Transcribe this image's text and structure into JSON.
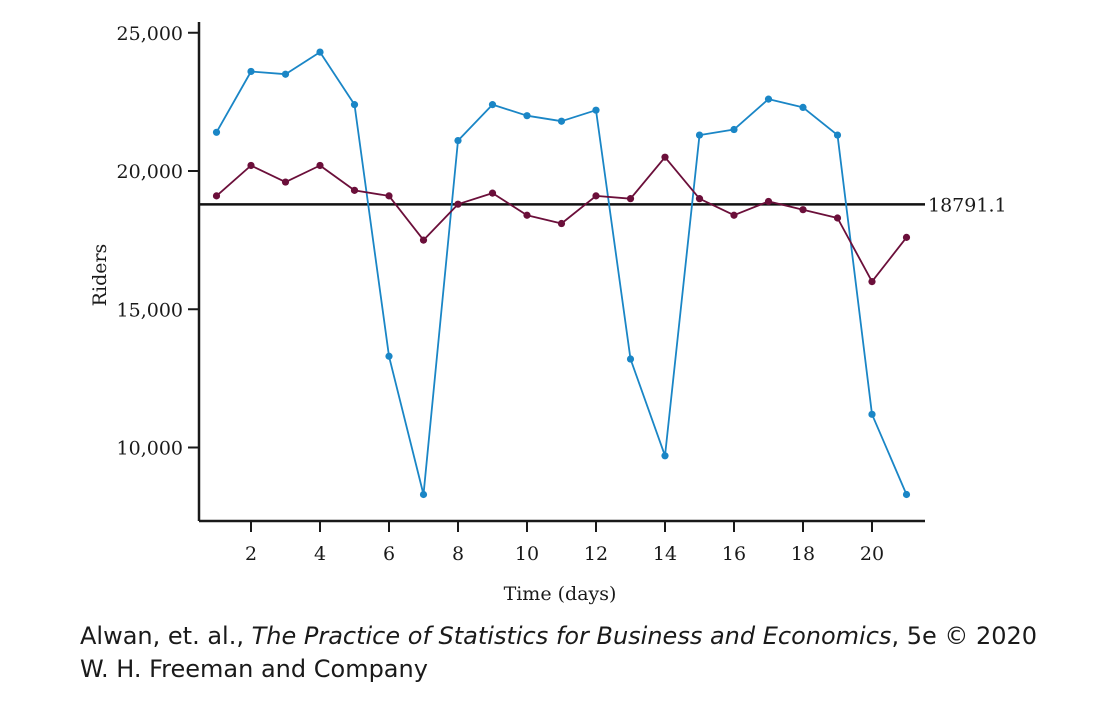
{
  "chart_data": {
    "type": "line",
    "xlabel": "Time (days)",
    "ylabel": "Riders",
    "xlim": [
      0.5,
      22
    ],
    "ylim": [
      7500,
      25300
    ],
    "x_ticks": [
      2,
      4,
      6,
      8,
      10,
      12,
      14,
      16,
      18,
      20
    ],
    "y_ticks": [
      10000,
      15000,
      20000,
      25000
    ],
    "y_tick_labels": [
      "10,000",
      "15,000",
      "20,000",
      "25,000"
    ],
    "x": [
      1,
      2,
      3,
      4,
      5,
      6,
      7,
      8,
      9,
      10,
      11,
      12,
      13,
      14,
      15,
      16,
      17,
      18,
      19,
      20,
      21
    ],
    "series": [
      {
        "color": "#1a86c6",
        "values": [
          21400,
          23600,
          23500,
          24300,
          22400,
          13300,
          8300,
          21100,
          22400,
          22000,
          21800,
          22200,
          13200,
          9700,
          21300,
          21500,
          22600,
          22300,
          21300,
          11200,
          8300
        ]
      },
      {
        "color": "#6b0f3a",
        "values": [
          19100,
          20200,
          19600,
          20200,
          19300,
          19100,
          17500,
          18800,
          19200,
          18400,
          18100,
          19100,
          19000,
          20500,
          19000,
          18400,
          18900,
          18600,
          18300,
          16000,
          17600
        ]
      }
    ],
    "reference_line": {
      "value": 18791.1,
      "label": "18791.1",
      "color": "#111111"
    },
    "grid": false,
    "legend": "none"
  },
  "caption": {
    "line1_prefix": "Alwan, et. al., ",
    "line1_title": "The Practice of Statistics for Business and Economics",
    "line1_suffix": ", 5e © 2020",
    "line2": "W. H. Freeman and Company"
  }
}
